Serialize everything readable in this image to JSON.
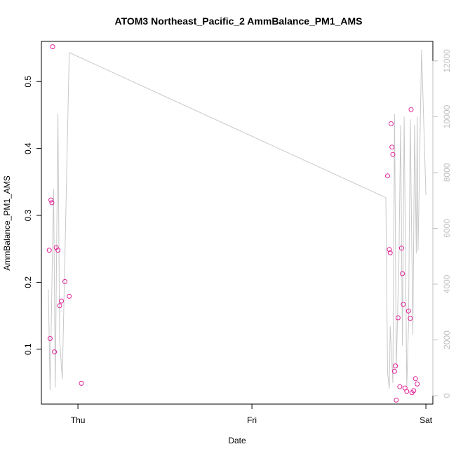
{
  "chart_data": {
    "type": "scatter",
    "title": "ATOM3 Northeast_Pacific_2 AmmBalance_PM1_AMS",
    "xlabel": "Date",
    "ylabel": "AmmBalance_PM1_AMS",
    "x_unit": "days",
    "x_ticks": [
      {
        "label": "Thu",
        "value": 0.0
      },
      {
        "label": "Fri",
        "value": 1.0
      },
      {
        "label": "Sat",
        "value": 2.0
      }
    ],
    "xlim": [
      -0.21,
      2.04
    ],
    "ylim": [
      0.018,
      0.56
    ],
    "y_ticks": [
      0.1,
      0.2,
      0.3,
      0.4,
      0.5
    ],
    "y_right_ticks": [
      0,
      2000,
      4000,
      6000,
      8000,
      10000,
      12000
    ],
    "y_right_lim": [
      -300,
      12700
    ],
    "grid": false,
    "series": [
      {
        "type": "scatter",
        "marker": "open-circle",
        "color": "#e0219a",
        "x": [
          -0.165,
          -0.16,
          -0.155,
          -0.15,
          -0.145,
          -0.135,
          -0.125,
          -0.115,
          -0.105,
          -0.095,
          -0.075,
          -0.05,
          0.02,
          1.78,
          1.79,
          1.795,
          1.8,
          1.805,
          1.81,
          1.82,
          1.825,
          1.83,
          1.84,
          1.85,
          1.86,
          1.865,
          1.87,
          1.88,
          1.89,
          1.9,
          1.91,
          1.915,
          1.92,
          1.93,
          1.94,
          1.95
        ],
        "y": [
          0.248,
          0.116,
          0.323,
          0.319,
          0.552,
          0.096,
          0.252,
          0.248,
          0.165,
          0.172,
          0.201,
          0.179,
          0.049,
          0.359,
          0.249,
          0.244,
          0.437,
          0.402,
          0.391,
          0.067,
          0.075,
          0.024,
          0.147,
          0.044,
          0.251,
          0.213,
          0.167,
          0.042,
          0.037,
          0.157,
          0.146,
          0.458,
          0.035,
          0.038,
          0.056,
          0.048
        ]
      },
      {
        "type": "line",
        "axis": "right",
        "color": "#c8c8c8",
        "x": [
          -0.17,
          -0.16,
          -0.14,
          -0.13,
          -0.115,
          -0.105,
          -0.09,
          -0.05,
          1.77,
          1.78,
          1.79,
          1.795,
          1.81,
          1.82,
          1.83,
          1.845,
          1.855,
          1.865,
          1.875,
          1.89,
          1.9,
          1.91,
          1.925,
          1.935,
          1.945,
          1.95,
          1.955,
          1.96,
          1.975,
          2.0
        ],
        "y": [
          3800,
          200,
          7400,
          300,
          10100,
          2000,
          600,
          12300,
          7100,
          800,
          250,
          2500,
          450,
          10100,
          1000,
          4800,
          9700,
          1800,
          10000,
          300,
          2500,
          9900,
          2200,
          9700,
          5100,
          10000,
          5200,
          7000,
          12400,
          7200
        ]
      }
    ]
  }
}
